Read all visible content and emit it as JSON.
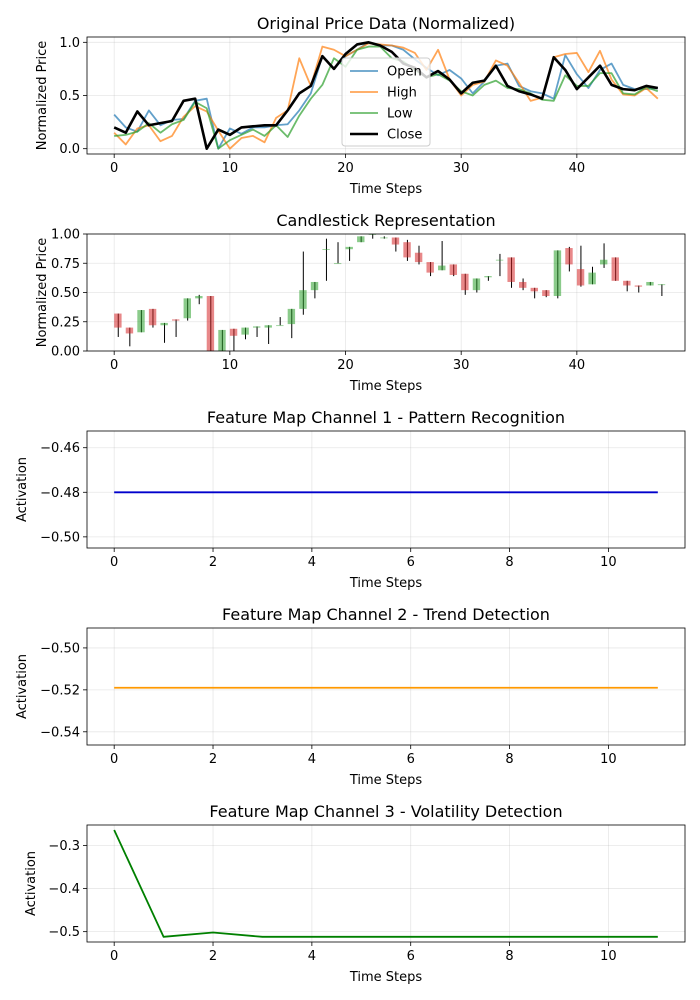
{
  "chart_data": [
    {
      "type": "line",
      "title": "Original Price Data (Normalized)",
      "xlabel": "Time Steps",
      "ylabel": "Normalized Price",
      "xlim": [
        -2.35,
        49.35
      ],
      "ylim": [
        -0.05,
        1.05
      ],
      "xticks": [
        0,
        10,
        20,
        30,
        40
      ],
      "yticks": [
        0.0,
        0.5,
        1.0
      ],
      "ytick_labels": [
        "0.0",
        "0.5",
        "1.0"
      ],
      "grid": true,
      "legend": "top-center",
      "x": [
        0,
        1,
        2,
        3,
        4,
        5,
        6,
        7,
        8,
        9,
        10,
        11,
        12,
        13,
        14,
        15,
        16,
        17,
        18,
        19,
        20,
        21,
        22,
        23,
        24,
        25,
        26,
        27,
        28,
        29,
        30,
        31,
        32,
        33,
        34,
        35,
        36,
        37,
        38,
        39,
        40,
        41,
        42,
        43,
        44,
        45,
        46,
        47
      ],
      "series": [
        {
          "name": "Open",
          "color": "#1f77b4",
          "opacity": 0.7,
          "width": 1.8,
          "values": [
            0.32,
            0.2,
            0.16,
            0.36,
            0.22,
            0.27,
            0.28,
            0.45,
            0.47,
            0.0,
            0.19,
            0.14,
            0.2,
            0.2,
            0.22,
            0.23,
            0.36,
            0.52,
            0.87,
            0.75,
            0.87,
            0.93,
            1.0,
            0.97,
            0.97,
            0.93,
            0.84,
            0.76,
            0.69,
            0.74,
            0.66,
            0.52,
            0.63,
            0.78,
            0.8,
            0.59,
            0.54,
            0.52,
            0.47,
            0.88,
            0.7,
            0.57,
            0.74,
            0.8,
            0.6,
            0.56,
            0.56,
            0.57
          ]
        },
        {
          "name": "High",
          "color": "#ff7f0e",
          "opacity": 0.7,
          "width": 1.8,
          "values": [
            0.15,
            0.04,
            0.19,
            0.22,
            0.07,
            0.12,
            0.3,
            0.4,
            0.35,
            0.17,
            0.0,
            0.1,
            0.12,
            0.06,
            0.29,
            0.36,
            0.85,
            0.59,
            0.96,
            0.93,
            0.87,
            0.93,
            0.99,
            0.98,
            0.97,
            0.95,
            0.9,
            0.74,
            0.93,
            0.65,
            0.5,
            0.6,
            0.63,
            0.83,
            0.78,
            0.62,
            0.45,
            0.48,
            0.86,
            0.89,
            0.9,
            0.72,
            0.92,
            0.65,
            0.51,
            0.5,
            0.57,
            0.47
          ]
        },
        {
          "name": "Low",
          "color": "#2ca02c",
          "opacity": 0.7,
          "width": 1.8,
          "values": [
            0.12,
            0.13,
            0.16,
            0.24,
            0.15,
            0.23,
            0.27,
            0.44,
            0.38,
            0.0,
            0.08,
            0.13,
            0.18,
            0.12,
            0.22,
            0.11,
            0.31,
            0.47,
            0.6,
            0.85,
            0.77,
            0.93,
            0.96,
            0.96,
            0.85,
            0.82,
            0.74,
            0.67,
            0.7,
            0.64,
            0.54,
            0.5,
            0.6,
            0.64,
            0.57,
            0.56,
            0.52,
            0.46,
            0.45,
            0.69,
            0.59,
            0.59,
            0.71,
            0.71,
            0.52,
            0.51,
            0.58,
            0.54
          ]
        },
        {
          "name": "Close",
          "color": "#000000",
          "opacity": 1.0,
          "width": 2.6,
          "values": [
            0.2,
            0.15,
            0.35,
            0.22,
            0.24,
            0.26,
            0.45,
            0.47,
            0.0,
            0.18,
            0.13,
            0.2,
            0.21,
            0.22,
            0.22,
            0.36,
            0.52,
            0.59,
            0.87,
            0.75,
            0.89,
            0.98,
            1.0,
            0.97,
            0.91,
            0.8,
            0.76,
            0.67,
            0.73,
            0.65,
            0.52,
            0.62,
            0.64,
            0.78,
            0.59,
            0.54,
            0.51,
            0.47,
            0.86,
            0.74,
            0.56,
            0.67,
            0.78,
            0.6,
            0.56,
            0.55,
            0.59,
            0.57
          ]
        }
      ]
    },
    {
      "type": "candlestick",
      "title": "Candlestick Representation",
      "xlabel": "Time Steps",
      "ylabel": "Normalized Price",
      "xlim": [
        -2.35,
        49.35
      ],
      "ylim": [
        0.0,
        1.0
      ],
      "xticks": [
        0,
        10,
        20,
        30,
        40
      ],
      "yticks": [
        0.0,
        0.25,
        0.5,
        0.75,
        1.0
      ],
      "ytick_labels": [
        "0.00",
        "0.25",
        "0.50",
        "0.75",
        "1.00"
      ],
      "grid": true,
      "up_color": "#2ca02c",
      "down_color": "#d62728",
      "wick_color": "#000000",
      "x": [
        0,
        1,
        2,
        3,
        4,
        5,
        6,
        7,
        8,
        9,
        10,
        11,
        12,
        13,
        14,
        15,
        16,
        17,
        18,
        19,
        20,
        21,
        22,
        23,
        24,
        25,
        26,
        27,
        28,
        29,
        30,
        31,
        32,
        33,
        34,
        35,
        36,
        37,
        38,
        39,
        40,
        41,
        42,
        43,
        44,
        45,
        46,
        47
      ],
      "open": [
        0.32,
        0.2,
        0.16,
        0.36,
        0.22,
        0.27,
        0.28,
        0.45,
        0.47,
        0.0,
        0.19,
        0.14,
        0.2,
        0.2,
        0.22,
        0.23,
        0.36,
        0.52,
        0.87,
        0.75,
        0.87,
        0.93,
        1.0,
        0.97,
        0.97,
        0.93,
        0.84,
        0.76,
        0.69,
        0.74,
        0.66,
        0.52,
        0.63,
        0.78,
        0.8,
        0.59,
        0.54,
        0.52,
        0.47,
        0.88,
        0.7,
        0.57,
        0.74,
        0.8,
        0.6,
        0.56,
        0.56,
        0.57
      ],
      "close": [
        0.2,
        0.15,
        0.35,
        0.22,
        0.24,
        0.26,
        0.45,
        0.47,
        0.0,
        0.18,
        0.13,
        0.2,
        0.21,
        0.22,
        0.22,
        0.36,
        0.52,
        0.59,
        0.87,
        0.75,
        0.89,
        0.98,
        1.0,
        0.97,
        0.91,
        0.8,
        0.76,
        0.67,
        0.73,
        0.65,
        0.52,
        0.62,
        0.64,
        0.78,
        0.59,
        0.54,
        0.51,
        0.47,
        0.86,
        0.74,
        0.56,
        0.67,
        0.78,
        0.6,
        0.56,
        0.55,
        0.59,
        0.57
      ],
      "wick_low": [
        0.12,
        0.04,
        0.16,
        0.2,
        0.07,
        0.12,
        0.26,
        0.4,
        0.0,
        0.0,
        0.0,
        0.1,
        0.12,
        0.06,
        0.22,
        0.11,
        0.31,
        0.45,
        0.6,
        0.75,
        0.77,
        0.93,
        0.96,
        0.96,
        0.85,
        0.77,
        0.74,
        0.64,
        0.69,
        0.64,
        0.48,
        0.5,
        0.6,
        0.64,
        0.54,
        0.52,
        0.45,
        0.46,
        0.45,
        0.68,
        0.55,
        0.57,
        0.71,
        0.6,
        0.51,
        0.5,
        0.56,
        0.47
      ],
      "wick_high": [
        0.32,
        0.2,
        0.35,
        0.36,
        0.24,
        0.27,
        0.45,
        0.48,
        0.47,
        0.18,
        0.19,
        0.2,
        0.21,
        0.22,
        0.29,
        0.36,
        0.85,
        0.59,
        0.96,
        0.93,
        0.89,
        0.98,
        1.0,
        0.98,
        0.97,
        0.95,
        0.9,
        0.76,
        0.94,
        0.74,
        0.66,
        0.62,
        0.64,
        0.83,
        0.8,
        0.62,
        0.54,
        0.52,
        0.86,
        0.89,
        0.9,
        0.72,
        0.92,
        0.8,
        0.6,
        0.56,
        0.59,
        0.57
      ]
    },
    {
      "type": "line",
      "title": "Feature Map Channel 1 - Pattern Recognition",
      "xlabel": "Time Steps",
      "ylabel": "Activation",
      "xlim": [
        -0.55,
        11.55
      ],
      "ylim": [
        -0.505,
        -0.4525
      ],
      "xticks": [
        0,
        2,
        4,
        6,
        8,
        10
      ],
      "yticks": [
        -0.5,
        -0.48,
        -0.46
      ],
      "ytick_labels": [
        "−0.50",
        "−0.48",
        "−0.46"
      ],
      "grid": true,
      "x": [
        0,
        1,
        2,
        3,
        4,
        5,
        6,
        7,
        8,
        9,
        10,
        11
      ],
      "series": [
        {
          "color": "#0000cc",
          "width": 1.8,
          "values": [
            -0.48,
            -0.48,
            -0.48,
            -0.48,
            -0.48,
            -0.48,
            -0.48,
            -0.48,
            -0.48,
            -0.48,
            -0.48,
            -0.48
          ]
        }
      ]
    },
    {
      "type": "line",
      "title": "Feature Map Channel 2 - Trend Detection",
      "xlabel": "Time Steps",
      "ylabel": "Activation",
      "xlim": [
        -0.55,
        11.55
      ],
      "ylim": [
        -0.5463,
        -0.4905
      ],
      "xticks": [
        0,
        2,
        4,
        6,
        8,
        10
      ],
      "yticks": [
        -0.54,
        -0.52,
        -0.5
      ],
      "ytick_labels": [
        "−0.54",
        "−0.52",
        "−0.50"
      ],
      "grid": true,
      "x": [
        0,
        1,
        2,
        3,
        4,
        5,
        6,
        7,
        8,
        9,
        10,
        11
      ],
      "series": [
        {
          "color": "#ff9900",
          "width": 1.8,
          "values": [
            -0.519,
            -0.519,
            -0.519,
            -0.519,
            -0.519,
            -0.519,
            -0.519,
            -0.519,
            -0.519,
            -0.519,
            -0.519,
            -0.519
          ]
        }
      ]
    },
    {
      "type": "line",
      "title": "Feature Map Channel 3 - Volatility Detection",
      "xlabel": "Time Steps",
      "ylabel": "Activation",
      "xlim": [
        -0.55,
        11.55
      ],
      "ylim": [
        -0.524,
        -0.2525
      ],
      "xticks": [
        0,
        2,
        4,
        6,
        8,
        10
      ],
      "yticks": [
        -0.5,
        -0.4,
        -0.3
      ],
      "ytick_labels": [
        "−0.5",
        "−0.4",
        "−0.3"
      ],
      "grid": true,
      "x": [
        0,
        1,
        2,
        3,
        4,
        5,
        6,
        7,
        8,
        9,
        10,
        11
      ],
      "series": [
        {
          "color": "#008000",
          "width": 1.8,
          "values": [
            -0.264,
            -0.512,
            -0.502,
            -0.512,
            -0.512,
            -0.512,
            -0.512,
            -0.512,
            -0.512,
            -0.512,
            -0.512,
            -0.512
          ]
        }
      ]
    }
  ]
}
